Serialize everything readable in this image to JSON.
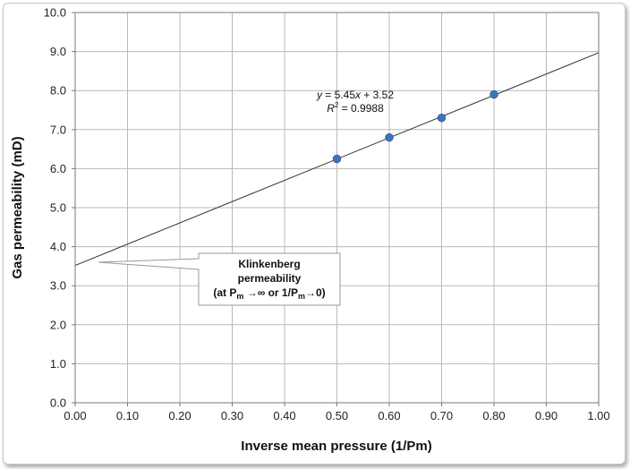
{
  "chart_data": {
    "type": "scatter",
    "xlabel": "Inverse mean pressure (1/Pm)",
    "ylabel": "Gas permeability (mD)",
    "xlim": [
      0,
      1
    ],
    "ylim": [
      0,
      10
    ],
    "grid": true,
    "x_ticks": [
      "0.00",
      "0.10",
      "0.20",
      "0.30",
      "0.40",
      "0.50",
      "0.60",
      "0.70",
      "0.80",
      "0.90",
      "1.00"
    ],
    "y_ticks": [
      "0.0",
      "1.0",
      "2.0",
      "3.0",
      "4.0",
      "5.0",
      "6.0",
      "7.0",
      "8.0",
      "9.0",
      "10.0"
    ],
    "series": [
      {
        "x": [
          0.5,
          0.6,
          0.7,
          0.8
        ],
        "y": [
          6.25,
          6.8,
          7.3,
          7.9
        ],
        "color": "#3f74b8"
      }
    ],
    "trendline": {
      "slope": 5.45,
      "intercept": 3.52,
      "equation": {
        "y": "y",
        "eq_rest": " = 5.45",
        "x": "x",
        "plus": " + 3.52"
      },
      "r2": {
        "r": "R",
        "sup": "2",
        "value": " = 0.9988"
      }
    },
    "annotation": {
      "line1": "Klinkenberg",
      "line2": "permeability",
      "line3": {
        "open": "(at P",
        "sub1": "m",
        "mid": " →∞ or 1/P",
        "sub2": "m",
        "close": "→0)"
      }
    }
  }
}
